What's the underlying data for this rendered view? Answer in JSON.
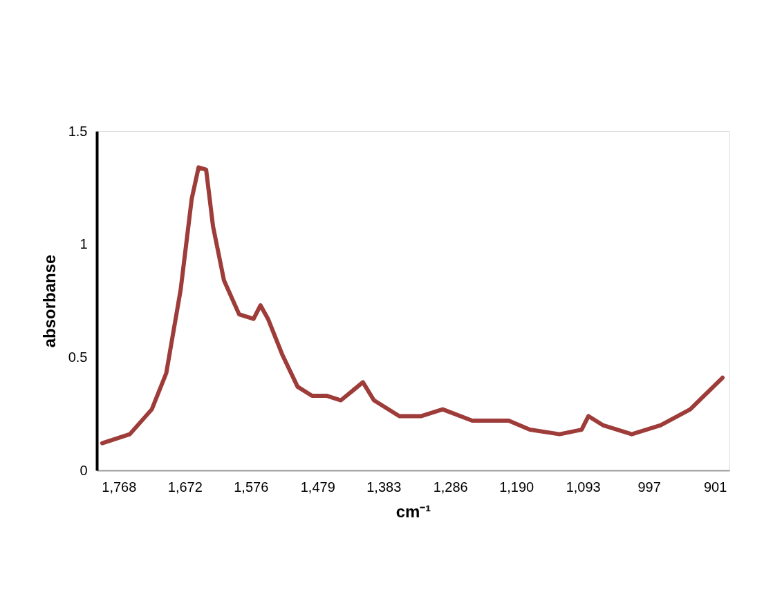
{
  "chart_data": {
    "type": "line",
    "xlabel": "cm⁻¹",
    "ylabel": "absorbanse",
    "x": [
      1792,
      1752,
      1720,
      1699,
      1678,
      1662,
      1652,
      1641,
      1631,
      1615,
      1593,
      1572,
      1562,
      1551,
      1530,
      1508,
      1487,
      1466,
      1445,
      1413,
      1397,
      1360,
      1328,
      1297,
      1254,
      1201,
      1170,
      1127,
      1095,
      1085,
      1064,
      1022,
      980,
      937,
      890
    ],
    "series": [
      {
        "color": "#9e3c3a",
        "values": [
          0.12,
          0.16,
          0.27,
          0.43,
          0.8,
          1.2,
          1.34,
          1.33,
          1.08,
          0.84,
          0.69,
          0.67,
          0.73,
          0.67,
          0.51,
          0.37,
          0.33,
          0.33,
          0.31,
          0.39,
          0.31,
          0.24,
          0.24,
          0.27,
          0.22,
          0.22,
          0.18,
          0.16,
          0.18,
          0.24,
          0.2,
          0.16,
          0.2,
          0.27,
          0.41
        ]
      }
    ],
    "xlim": [
      1800,
      880
    ],
    "xticks": [
      {
        "value": 1768,
        "label": "1,768"
      },
      {
        "value": 1672,
        "label": "1,672"
      },
      {
        "value": 1576,
        "label": "1,576"
      },
      {
        "value": 1479,
        "label": "1,479"
      },
      {
        "value": 1383,
        "label": "1,383"
      },
      {
        "value": 1286,
        "label": "1,286"
      },
      {
        "value": 1190,
        "label": "1,190"
      },
      {
        "value": 1093,
        "label": "1,093"
      },
      {
        "value": 997,
        "label": "997"
      },
      {
        "value": 901,
        "label": "901"
      }
    ],
    "ylim": [
      0,
      1.5
    ],
    "yticks": [
      0,
      0.5,
      1,
      1.5
    ],
    "grid": false,
    "marker": "none",
    "line_style": "solid"
  }
}
